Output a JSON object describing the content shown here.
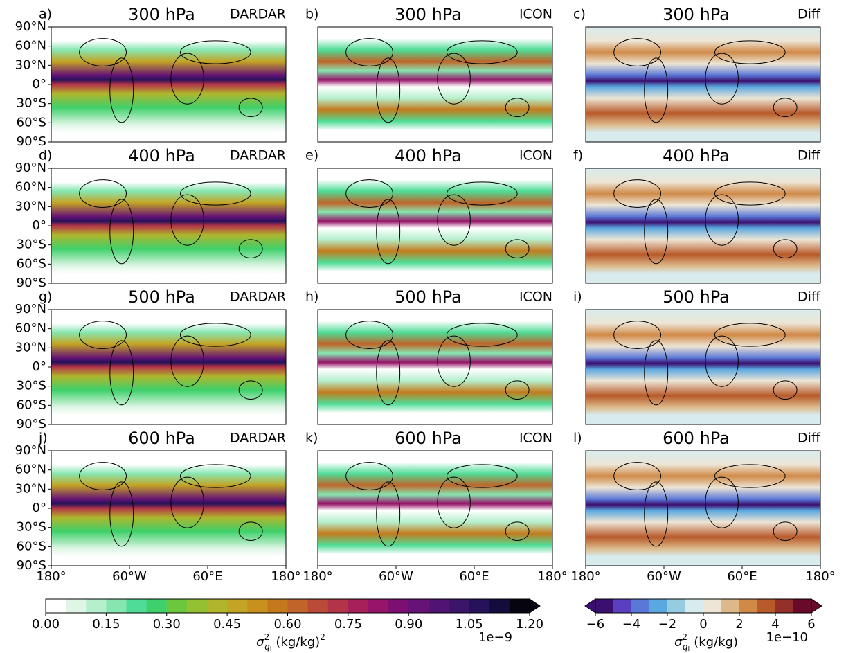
{
  "panels": [
    {
      "label": "a)",
      "level": "300 hPa",
      "source": "DARDAR"
    },
    {
      "label": "b)",
      "level": "300 hPa",
      "source": "ICON"
    },
    {
      "label": "c)",
      "level": "300 hPa",
      "source": "Diff"
    },
    {
      "label": "d)",
      "level": "400 hPa",
      "source": "DARDAR"
    },
    {
      "label": "e)",
      "level": "400 hPa",
      "source": "ICON"
    },
    {
      "label": "f)",
      "level": "400 hPa",
      "source": "Diff"
    },
    {
      "label": "g)",
      "level": "500 hPa",
      "source": "DARDAR"
    },
    {
      "label": "h)",
      "level": "500 hPa",
      "source": "ICON"
    },
    {
      "label": "i)",
      "level": "500 hPa",
      "source": "Diff"
    },
    {
      "label": "j)",
      "level": "600 hPa",
      "source": "DARDAR"
    },
    {
      "label": "k)",
      "level": "600 hPa",
      "source": "ICON"
    },
    {
      "label": "l)",
      "level": "600 hPa",
      "source": "Diff"
    }
  ],
  "lat_ticks": [
    "90°N",
    "60°N",
    "30°N",
    "0°",
    "30°S",
    "60°S",
    "90°S"
  ],
  "lon_ticks": [
    "180°",
    "60°W",
    "60°E",
    "180°"
  ],
  "colorbars": [
    {
      "lim": [
        0,
        1.2
      ],
      "extend": "max",
      "ticks": [
        {
          "value": 0,
          "label": "0.00"
        },
        {
          "value": 0.15,
          "label": "0.15"
        },
        {
          "value": 0.3,
          "label": "0.30"
        },
        {
          "value": 0.45,
          "label": "0.45"
        },
        {
          "value": 0.6,
          "label": "0.60"
        },
        {
          "value": 0.75,
          "label": "0.75"
        },
        {
          "value": 0.9,
          "label": "0.90"
        },
        {
          "value": 1.05,
          "label": "1.05"
        },
        {
          "value": 1.2,
          "label": "1.20"
        }
      ],
      "colors": [
        "#ffffff",
        "#dff6e6",
        "#b5efcc",
        "#86e6b0",
        "#4fdc96",
        "#3ed06a",
        "#6cc73c",
        "#93c131",
        "#b0b52c",
        "#c4a424",
        "#c8901c",
        "#c47a1c",
        "#c0642a",
        "#bb4a38",
        "#b33448",
        "#a8205a",
        "#961469",
        "#7e0f72",
        "#661276",
        "#501574",
        "#3a156a",
        "#26125a",
        "#150c3e",
        "#06040f"
      ],
      "exponent": "1e−9",
      "label": {
        "symbol": "σ",
        "sup": "2",
        "sub": "q",
        "subsub": "i",
        "unit": "(kg/kg)",
        "unit_sup": "2"
      }
    },
    {
      "lim": [
        -6,
        6
      ],
      "extend": "both",
      "ticks": [
        {
          "value": -6,
          "label": "−6"
        },
        {
          "value": -4,
          "label": "−4"
        },
        {
          "value": -2,
          "label": "−2"
        },
        0,
        2,
        4,
        6
      ],
      "colors": [
        "#3b0f70",
        "#5a3fc0",
        "#5a78d8",
        "#5aa8e0",
        "#96cce0",
        "#d8ecee",
        "#ede5d5",
        "#ddb98a",
        "#d08a48",
        "#b85a2a",
        "#94302a",
        "#6a0a2a"
      ],
      "exponent": "1e−10",
      "label": {
        "symbol": "σ",
        "sup": "2",
        "sub": "q",
        "subsub": "i",
        "unit": "(kg/kg)"
      }
    }
  ]
}
